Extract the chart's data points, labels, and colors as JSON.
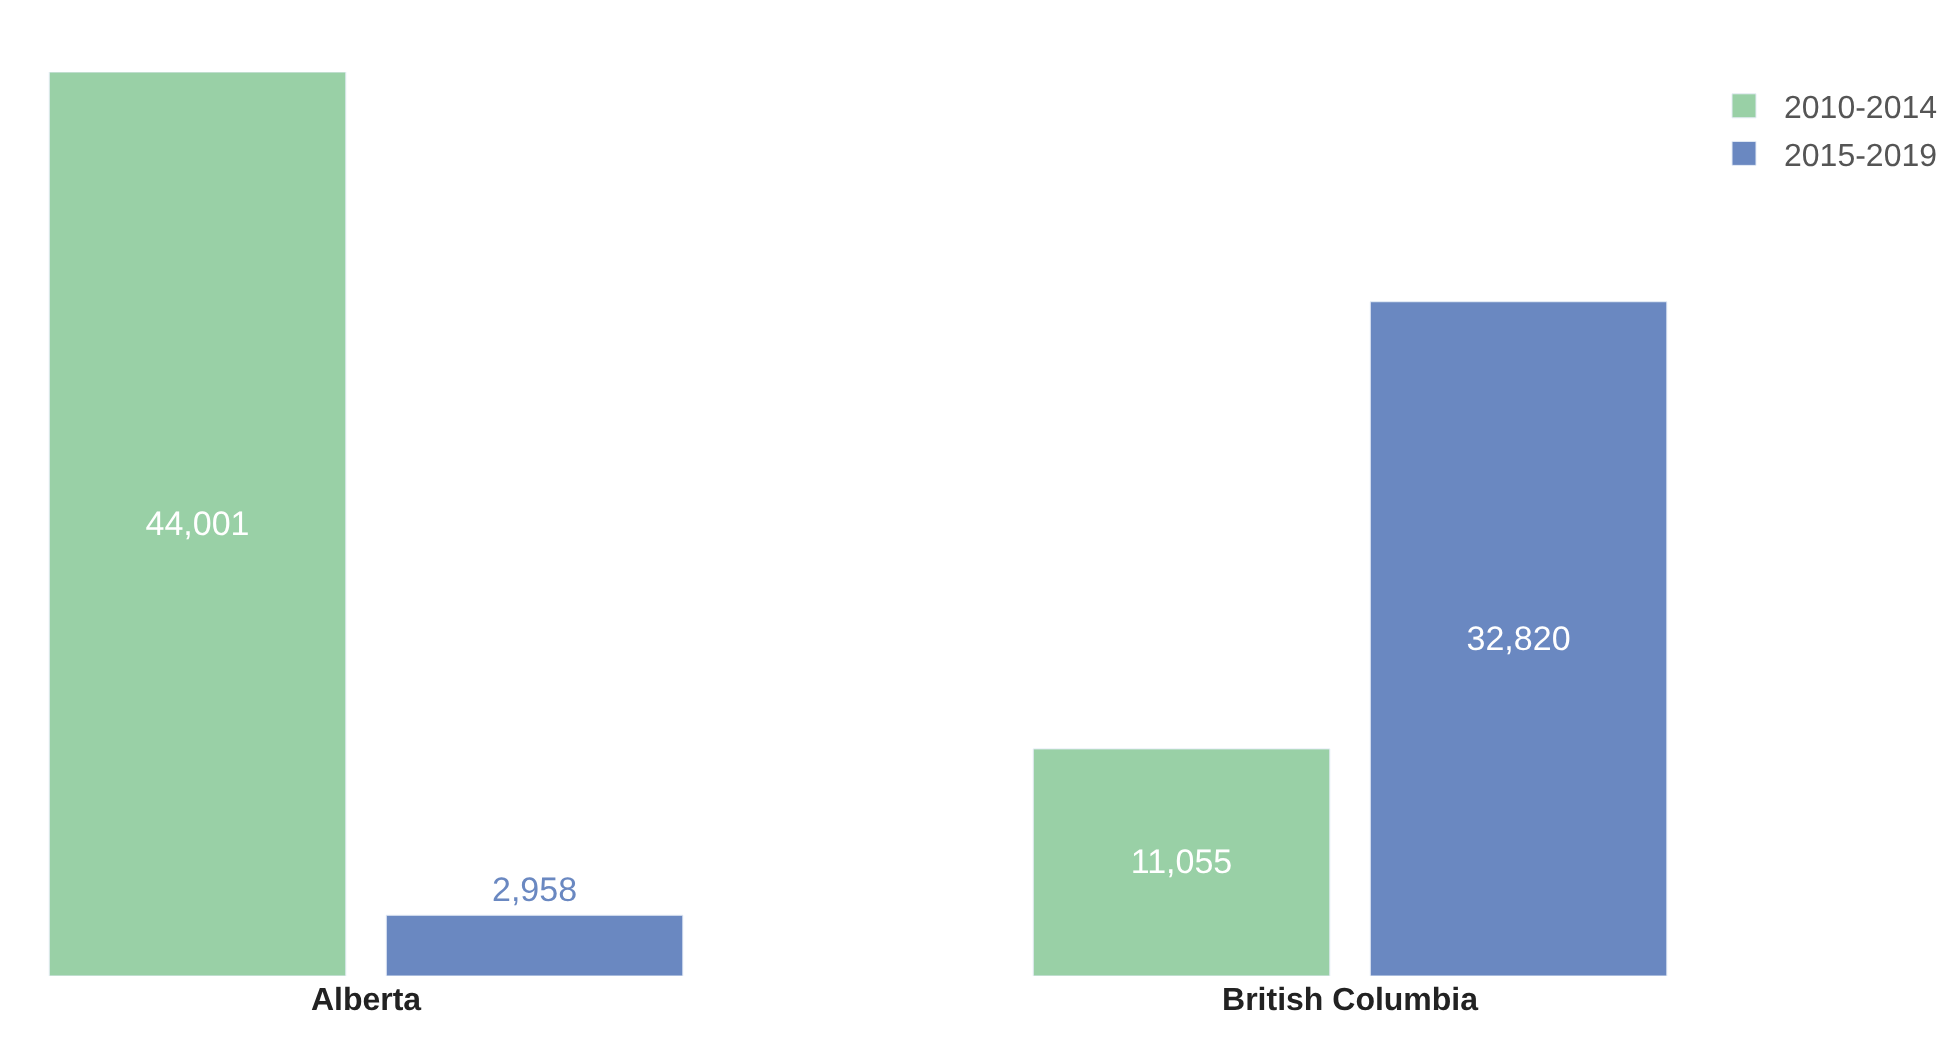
{
  "chart_data": {
    "type": "bar",
    "categories": [
      "Alberta",
      "British Columbia"
    ],
    "series": [
      {
        "name": "2010-2014",
        "color": "#99d0a6",
        "values": [
          44001,
          11055
        ],
        "value_labels": [
          "44,001",
          "11,055"
        ]
      },
      {
        "name": "2015-2019",
        "color": "#6a88c1",
        "values": [
          2958,
          32820
        ],
        "value_labels": [
          "2,958",
          "32,820"
        ]
      }
    ],
    "legend": "top right"
  }
}
